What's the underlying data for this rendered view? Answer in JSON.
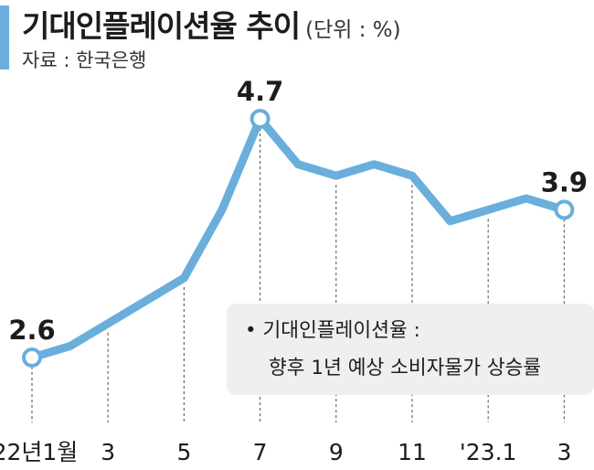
{
  "header": {
    "title": "기대인플레이션율 추이",
    "unit": "(단위 : %)",
    "source": "자료 : 한국은행"
  },
  "note": {
    "line1": "• 기대인플레이션율 :",
    "line2": "향후 1년 예상 소비자물가 상승률"
  },
  "colors": {
    "line": "#6aaedc",
    "accent": "#6aaedc",
    "note_bg": "#efefef"
  },
  "chart_data": {
    "type": "line",
    "title": "기대인플레이션율 추이",
    "ylabel": "",
    "xlabel": "",
    "ylim": [
      2.6,
      4.7
    ],
    "x": [
      "2022-01",
      "2022-02",
      "2022-03",
      "2022-04",
      "2022-05",
      "2022-06",
      "2022-07",
      "2022-08",
      "2022-09",
      "2022-10",
      "2022-11",
      "2022-12",
      "2023-01",
      "2023-02",
      "2023-03"
    ],
    "values": [
      2.6,
      2.7,
      2.9,
      3.1,
      3.3,
      3.9,
      4.7,
      4.3,
      4.2,
      4.3,
      4.2,
      3.8,
      3.9,
      4.0,
      3.9
    ],
    "tick_labels": [
      {
        "index": 0,
        "label": "'22년1월"
      },
      {
        "index": 2,
        "label": "3"
      },
      {
        "index": 4,
        "label": "5"
      },
      {
        "index": 6,
        "label": "7"
      },
      {
        "index": 8,
        "label": "9"
      },
      {
        "index": 10,
        "label": "11"
      },
      {
        "index": 12,
        "label": "'23.1"
      },
      {
        "index": 14,
        "label": "3"
      }
    ],
    "data_labels": [
      {
        "index": 0,
        "label": "2.6"
      },
      {
        "index": 6,
        "label": "4.7"
      },
      {
        "index": 14,
        "label": "3.9"
      }
    ],
    "grid": false,
    "legend": "none"
  }
}
